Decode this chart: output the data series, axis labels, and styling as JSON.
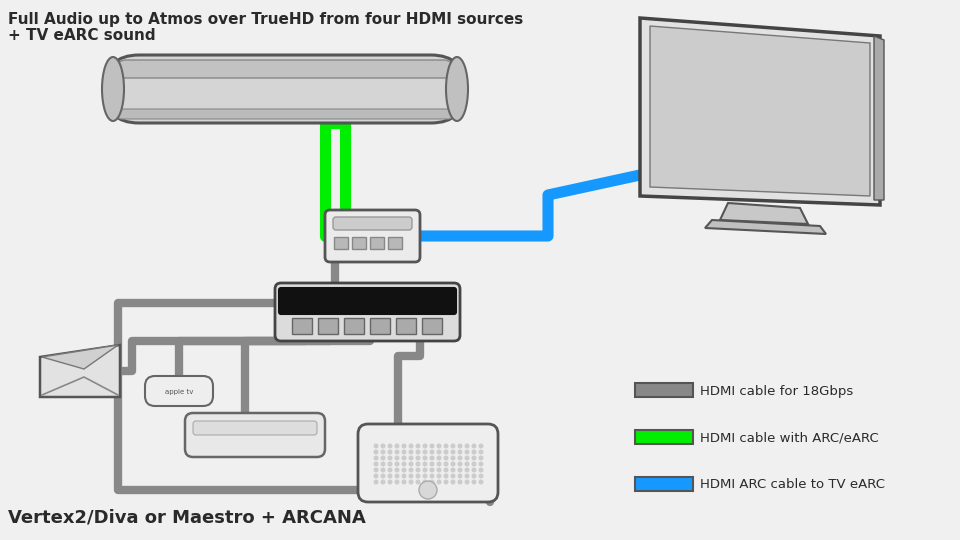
{
  "title_line1": "Full Audio up to Atmos over TrueHD from four HDMI sources",
  "title_line2": "+ TV eARC sound",
  "bottom_label": "Vertex2/Diva or Maestro + ARCANA",
  "legend": [
    {
      "color": "#888888",
      "label": "HDMI cable for 18Gbps"
    },
    {
      "color": "#00ee00",
      "label": "HDMI cable with ARC/eARC"
    },
    {
      "color": "#1599ff",
      "label": "HDMI ARC cable to TV eARC"
    }
  ],
  "bg_color": "#f0f0f0",
  "text_color": "#2a2a2a",
  "gray": "#888888",
  "green": "#00ee00",
  "blue": "#1599ff",
  "cable_lw": 6
}
